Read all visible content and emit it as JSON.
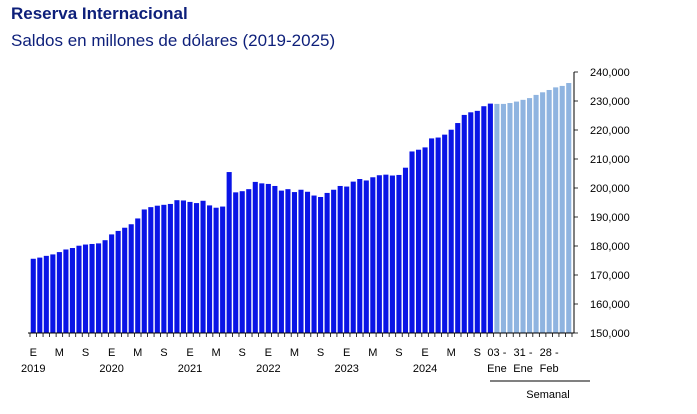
{
  "header": {
    "title": "Reserva Internacional",
    "subtitle": "Saldos en millones de dólares (2019-2025)"
  },
  "chart_data": {
    "type": "bar",
    "title": "Reserva Internacional",
    "subtitle": "Saldos en millones de dólares (2019-2025)",
    "ylim": [
      150000,
      240000
    ],
    "yticks": [
      "150,000",
      "160,000",
      "170,000",
      "180,000",
      "190,000",
      "200,000",
      "210,000",
      "220,000",
      "230,000",
      "240,000"
    ],
    "grid": false,
    "colors": {
      "monthly": "#0a14e6",
      "weekly": "#8fb4e0"
    },
    "series": [
      {
        "name": "",
        "values": [
          175600,
          176000,
          176600,
          177100,
          177900,
          178800,
          179300,
          180100,
          180500,
          180700,
          180900,
          182000,
          184000,
          185200,
          186300,
          187500,
          189500,
          192600,
          193400,
          193900,
          194200,
          194500,
          195800,
          195700,
          195200,
          194800,
          195600,
          194000,
          193200,
          193600,
          205500,
          198500,
          198900,
          199600,
          202100,
          201600,
          201400,
          200700,
          199100,
          199600,
          198600,
          199400,
          198700,
          197400,
          196900,
          198300,
          199400,
          200700,
          200500,
          202200,
          203100,
          202600,
          203700,
          204400,
          204600,
          204300,
          204500,
          207000,
          212600,
          213200,
          214000,
          217100,
          217400,
          218400,
          220100,
          222400,
          225200,
          226100,
          226600,
          228200,
          229100
        ],
        "color": "#0a14e6"
      },
      {
        "name": "",
        "values": [
          229000,
          229000,
          229300,
          229800,
          230400,
          231000,
          232100,
          233000,
          233800,
          234700,
          235200,
          236200
        ],
        "color": "#8fb4e0"
      }
    ],
    "x_month_labels": [
      {
        "index": 0,
        "label": "E"
      },
      {
        "index": 4,
        "label": "M"
      },
      {
        "index": 8,
        "label": "S"
      },
      {
        "index": 12,
        "label": "E"
      },
      {
        "index": 16,
        "label": "M"
      },
      {
        "index": 20,
        "label": "S"
      },
      {
        "index": 24,
        "label": "E"
      },
      {
        "index": 28,
        "label": "M"
      },
      {
        "index": 32,
        "label": "S"
      },
      {
        "index": 36,
        "label": "E"
      },
      {
        "index": 40,
        "label": "M"
      },
      {
        "index": 44,
        "label": "S"
      },
      {
        "index": 48,
        "label": "E"
      },
      {
        "index": 52,
        "label": "M"
      },
      {
        "index": 56,
        "label": "S"
      },
      {
        "index": 60,
        "label": "E"
      },
      {
        "index": 64,
        "label": "M"
      },
      {
        "index": 68,
        "label": "S"
      }
    ],
    "x_year_labels": [
      {
        "index": 0,
        "label": "2019"
      },
      {
        "index": 12,
        "label": "2020"
      },
      {
        "index": 24,
        "label": "2021"
      },
      {
        "index": 36,
        "label": "2022"
      },
      {
        "index": 48,
        "label": "2023"
      },
      {
        "index": 60,
        "label": "2024"
      }
    ],
    "x_weekly_labels": [
      {
        "index": 71,
        "top": "03 -",
        "bottom": "Ene"
      },
      {
        "index": 75,
        "top": "31 -",
        "bottom": "Ene"
      },
      {
        "index": 79,
        "top": "28 -",
        "bottom": "Feb"
      }
    ],
    "weekly_group_label": "Semanal"
  }
}
